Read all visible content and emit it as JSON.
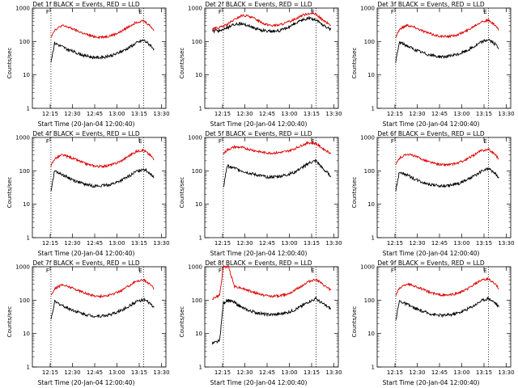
{
  "chart_data": {
    "type": "line",
    "y_scale": "log",
    "ylim": [
      1,
      1000
    ],
    "y_ticks": [
      "1",
      "10",
      "100",
      "1000"
    ],
    "x_ticks": [
      "12:15",
      "12:30",
      "12:45",
      "13:00",
      "13:15",
      "13:30"
    ],
    "xlabel": "Start Time (20-Jan-04 12:00:40)",
    "ylabel": "Counts/sec",
    "series_colors": {
      "Events": "#000000",
      "LLD": "#dd0000"
    },
    "marker_labels": {
      "start": "F",
      "end": "E"
    },
    "panels": [
      {
        "title": "Det 1f BLACK = Events, RED = LLD",
        "x_minutes": [
          12.5,
          15,
          20,
          25,
          30,
          35,
          40,
          45,
          50,
          55,
          60,
          65,
          70,
          75,
          80,
          82
        ],
        "events": [
          25,
          90,
          70,
          55,
          45,
          38,
          34,
          33,
          35,
          40,
          50,
          65,
          90,
          110,
          75,
          60
        ],
        "lld": [
          140,
          220,
          300,
          260,
          210,
          170,
          145,
          135,
          140,
          160,
          200,
          280,
          380,
          420,
          280,
          210
        ]
      },
      {
        "title": "Det 2f BLACK = Events, RED = LLD",
        "x_minutes": [
          5,
          10,
          15,
          20,
          25,
          30,
          35,
          40,
          45,
          50,
          55,
          60,
          65,
          70,
          75,
          80,
          85
        ],
        "events": [
          200,
          210,
          250,
          330,
          340,
          290,
          240,
          210,
          200,
          210,
          250,
          330,
          420,
          500,
          450,
          300,
          230
        ],
        "lld": [
          240,
          260,
          320,
          450,
          600,
          570,
          450,
          340,
          300,
          310,
          360,
          450,
          590,
          700,
          650,
          420,
          300
        ]
      },
      {
        "title": "Det 3f BLACK = Events, RED = LLD",
        "x_minutes": [
          12.5,
          15,
          20,
          25,
          30,
          35,
          40,
          45,
          50,
          55,
          60,
          65,
          70,
          75,
          80,
          82
        ],
        "events": [
          25,
          95,
          75,
          58,
          47,
          40,
          36,
          35,
          37,
          42,
          52,
          68,
          95,
          115,
          80,
          62
        ],
        "lld": [
          140,
          230,
          310,
          270,
          215,
          175,
          150,
          140,
          145,
          165,
          205,
          285,
          390,
          430,
          290,
          215
        ]
      },
      {
        "title": "Det 4f BLACK = Events, RED = LLD",
        "x_minutes": [
          12.5,
          15,
          20,
          25,
          30,
          35,
          40,
          45,
          50,
          55,
          60,
          65,
          70,
          75,
          80,
          82
        ],
        "events": [
          25,
          100,
          78,
          60,
          48,
          40,
          36,
          35,
          37,
          42,
          52,
          68,
          95,
          115,
          80,
          62
        ],
        "lld": [
          140,
          230,
          300,
          260,
          210,
          170,
          145,
          135,
          140,
          160,
          200,
          280,
          380,
          420,
          280,
          210
        ]
      },
      {
        "title": "Det 5f BLACK = Events, RED = LLD",
        "x_minutes": [
          12.5,
          15,
          20,
          25,
          30,
          35,
          40,
          45,
          50,
          55,
          60,
          65,
          70,
          75,
          80,
          85
        ],
        "events": [
          30,
          140,
          120,
          100,
          85,
          75,
          68,
          65,
          68,
          75,
          90,
          120,
          170,
          200,
          110,
          70
        ],
        "lld": [
          320,
          420,
          520,
          500,
          440,
          390,
          350,
          340,
          350,
          380,
          450,
          570,
          700,
          650,
          450,
          330
        ]
      },
      {
        "title": "Det 6f BLACK = Events, RED = LLD",
        "x_minutes": [
          12.5,
          15,
          20,
          25,
          30,
          35,
          40,
          45,
          50,
          55,
          60,
          65,
          70,
          75,
          80,
          82
        ],
        "events": [
          25,
          95,
          75,
          58,
          47,
          40,
          36,
          35,
          37,
          42,
          52,
          68,
          95,
          115,
          80,
          62
        ],
        "lld": [
          150,
          240,
          320,
          280,
          225,
          185,
          160,
          150,
          155,
          175,
          215,
          295,
          400,
          440,
          300,
          220
        ]
      },
      {
        "title": "Det 7f BLACK = Events, RED = LLD",
        "x_minutes": [
          12.5,
          15,
          20,
          25,
          30,
          35,
          40,
          45,
          50,
          55,
          60,
          65,
          70,
          75,
          80,
          82
        ],
        "events": [
          25,
          90,
          70,
          55,
          45,
          38,
          34,
          33,
          35,
          40,
          50,
          65,
          90,
          105,
          75,
          60
        ],
        "lld": [
          140,
          220,
          290,
          250,
          205,
          165,
          140,
          130,
          135,
          155,
          195,
          270,
          370,
          410,
          280,
          210
        ]
      },
      {
        "title": "Det 8f BLACK = Events, RED = LLD",
        "x_minutes": [
          5,
          10,
          12.5,
          14,
          16,
          20,
          25,
          30,
          35,
          40,
          45,
          50,
          55,
          60,
          65,
          70,
          75,
          80,
          85
        ],
        "events": [
          5,
          6,
          80,
          90,
          100,
          85,
          60,
          48,
          42,
          38,
          37,
          38,
          42,
          50,
          65,
          90,
          110,
          75,
          55
        ],
        "lld": [
          110,
          140,
          1000,
          1000,
          1000,
          260,
          230,
          190,
          160,
          140,
          130,
          135,
          150,
          190,
          260,
          360,
          420,
          280,
          200
        ]
      },
      {
        "title": "Det 9f BLACK = Events, RED = LLD",
        "x_minutes": [
          12.5,
          15,
          20,
          25,
          30,
          35,
          40,
          45,
          50,
          55,
          60,
          65,
          70,
          75,
          80,
          82
        ],
        "events": [
          25,
          95,
          75,
          58,
          47,
          40,
          36,
          35,
          37,
          42,
          52,
          68,
          95,
          115,
          80,
          62
        ],
        "lld": [
          140,
          230,
          310,
          270,
          215,
          175,
          150,
          140,
          145,
          165,
          205,
          285,
          390,
          430,
          290,
          215
        ]
      }
    ]
  }
}
